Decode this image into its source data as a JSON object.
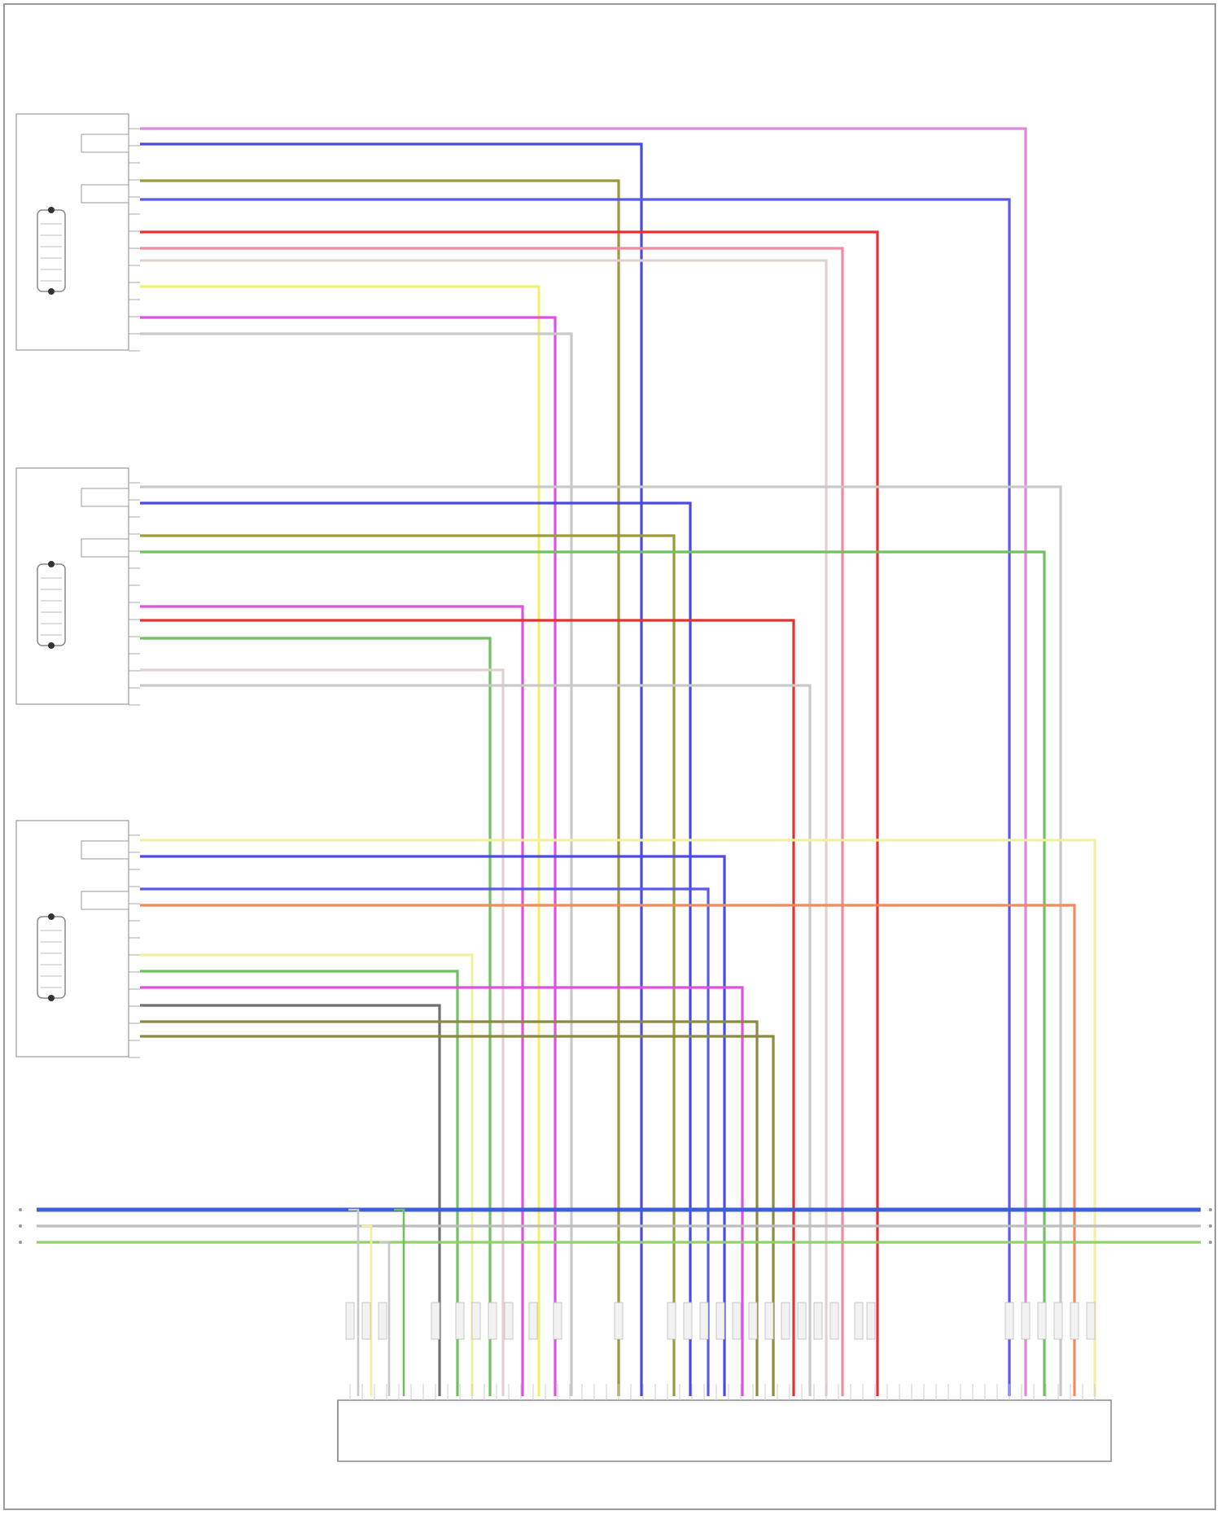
{
  "page": {
    "footer_text": ""
  },
  "modules": [
    {
      "id": "m1",
      "caption_lines": [
        "",
        "",
        ""
      ],
      "port_a": "",
      "port_b": ""
    },
    {
      "id": "m2",
      "caption_lines": [
        "",
        "",
        ""
      ],
      "port_a": "",
      "port_b": ""
    },
    {
      "id": "m3",
      "caption_lines": [
        "",
        "",
        ""
      ],
      "port_a": "",
      "port_b": ""
    }
  ],
  "main_unit": {
    "caption_lines": [
      "",
      ""
    ]
  },
  "buses": [
    {
      "label_left": "",
      "label_right": "",
      "color": "#3a5fd9"
    },
    {
      "label_left": "",
      "label_right": "",
      "color": "#bdbdbd"
    },
    {
      "label_left": "",
      "label_right": "",
      "color": "#8fd16b"
    }
  ],
  "wire_colors": {
    "violet": "#d98bd9",
    "blue": "#4a4ae0",
    "olive": "#9a9a3a",
    "blue2": "#5a5ae8",
    "red": "#e83030",
    "pink": "#f08aa0",
    "light": "#e0d0d0",
    "yellow": "#f0f070",
    "magenta": "#e050e0",
    "grey": "#c8c8c8",
    "green": "#70c060",
    "darkolive": "#8a8a40",
    "orange": "#f08a5a",
    "paleyellow": "#f0f0a0",
    "darkgrey": "#707070",
    "bluegrey": "#7a8aa8"
  }
}
